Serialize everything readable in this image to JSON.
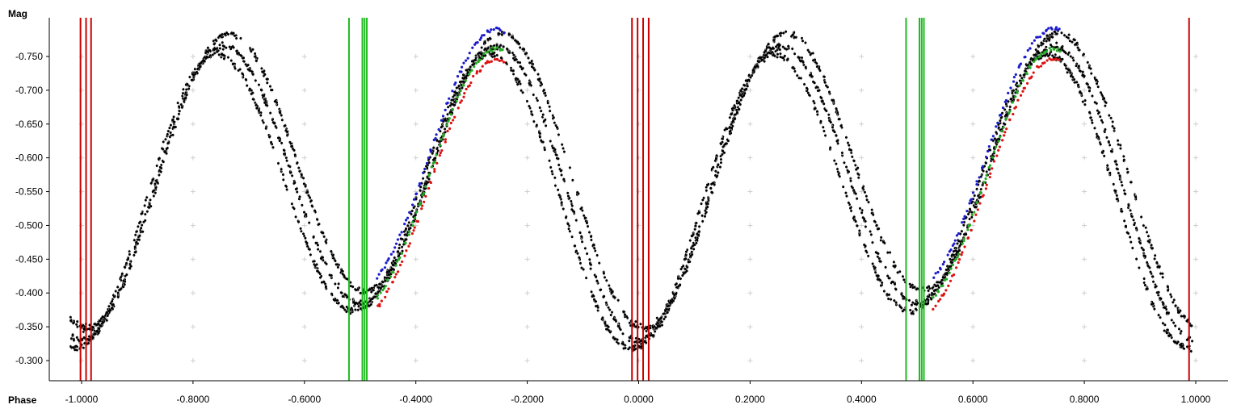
{
  "chart_data": {
    "type": "scatter",
    "title": "",
    "xlabel": "Phase",
    "ylabel": "Mag",
    "xlim": [
      -1.09,
      1.05
    ],
    "ylim": [
      -0.282,
      -0.79
    ],
    "y_inverted": true,
    "grid": "sparse crosses",
    "x_ticks": [
      -1.0,
      -0.8,
      -0.6,
      -0.4,
      -0.2,
      0.0,
      0.2,
      0.4,
      0.6,
      0.8,
      1.0
    ],
    "x_tick_labels": [
      "-1.0000",
      "-0.8000",
      "-0.6000",
      "-0.4000",
      "-0.2000",
      "0.0000",
      "0.2000",
      "0.4000",
      "0.6000",
      "0.8000",
      "1.0000"
    ],
    "y_ticks": [
      -0.3,
      -0.35,
      -0.4,
      -0.45,
      -0.5,
      -0.55,
      -0.6,
      -0.65,
      -0.7,
      -0.75
    ],
    "y_tick_labels": [
      "-0.300",
      "-0.350",
      "-0.400",
      "-0.450",
      "-0.500",
      "-0.550",
      "-0.600",
      "-0.650",
      "-0.700",
      "-0.750"
    ],
    "vertical_lines": [
      {
        "x": -1.002,
        "color": "#cc0000"
      },
      {
        "x": -0.992,
        "color": "#cc0000"
      },
      {
        "x": -0.983,
        "color": "#cc0000"
      },
      {
        "x": -0.52,
        "color": "#22bb22"
      },
      {
        "x": -0.496,
        "color": "#22bb22"
      },
      {
        "x": -0.492,
        "color": "#22bb22"
      },
      {
        "x": -0.488,
        "color": "#22bb22"
      },
      {
        "x": -0.012,
        "color": "#cc0000"
      },
      {
        "x": -0.002,
        "color": "#cc0000"
      },
      {
        "x": 0.008,
        "color": "#cc0000"
      },
      {
        "x": 0.018,
        "color": "#cc0000"
      },
      {
        "x": 0.48,
        "color": "#22bb22"
      },
      {
        "x": 0.504,
        "color": "#22bb22"
      },
      {
        "x": 0.508,
        "color": "#22bb22"
      },
      {
        "x": 0.512,
        "color": "#22bb22"
      },
      {
        "x": 0.988,
        "color": "#cc0000"
      }
    ],
    "series": [
      {
        "color": "#000000",
        "curves": [
          {
            "offset": 0.0,
            "phase_shift": 0.0
          },
          {
            "offset": 0.012,
            "phase_shift": 0.012
          },
          {
            "offset": -0.018,
            "phase_shift": -0.01
          }
        ],
        "light_curve": {
          "primary_min_mag": -0.33,
          "secondary_min_mag": -0.385,
          "max_mag": -0.765
        }
      },
      {
        "color": "#1a1acc",
        "x_range": [
          -0.47,
          -0.24
        ],
        "mag_offset": -0.025
      },
      {
        "color": "#22aa22",
        "x_range": [
          -0.47,
          -0.24
        ],
        "mag_offset": 0.005
      },
      {
        "color": "#dd1111",
        "x_range": [
          -0.47,
          -0.24
        ],
        "mag_offset": 0.02
      },
      {
        "color": "#1a1acc",
        "x_range": [
          0.53,
          0.76
        ],
        "mag_offset": -0.025
      },
      {
        "color": "#22aa22",
        "x_range": [
          0.53,
          0.76
        ],
        "mag_offset": 0.005
      },
      {
        "color": "#dd1111",
        "x_range": [
          0.53,
          0.76
        ],
        "mag_offset": 0.02
      }
    ]
  }
}
